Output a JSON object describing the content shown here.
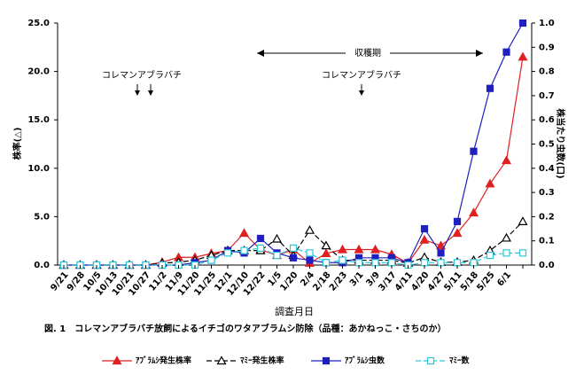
{
  "chart_data": {
    "type": "line",
    "title": "図. 1　コレマンアブラバチ放飼によるイチゴのワタアブラムシ防除（品種：あかねっこ・さちのか）",
    "xlabel": "調査月日",
    "ylabel": "株率(△)",
    "y2label": "株当たり虫数(口)",
    "annotations": [
      "収穫期",
      "コレマンアブラバチ",
      "コレマンアブラバチ"
    ],
    "categories": [
      "9/21",
      "9/28",
      "10/5",
      "10/13",
      "10/21",
      "10/27",
      "11/2",
      "11/9",
      "11/20",
      "11/25",
      "12/1",
      "12/10",
      "12/22",
      "1/5",
      "1/20",
      "2/4",
      "2/18",
      "2/23",
      "3/1",
      "3/9",
      "3/17",
      "4/11",
      "4/20",
      "4/27",
      "5/11",
      "5/18",
      "5/25",
      "6/1",
      null
    ],
    "ylim": [
      0,
      25
    ],
    "yticks": [
      {
        "value": 0,
        "label": "0.0"
      },
      {
        "value": 5,
        "label": "5.0"
      },
      {
        "value": 10,
        "label": "10.0"
      },
      {
        "value": 15,
        "label": "15.0"
      },
      {
        "value": 20,
        "label": "20.0"
      },
      {
        "value": 25,
        "label": "25.0"
      }
    ],
    "y2lim": [
      0,
      1
    ],
    "y2ticks": [
      {
        "value": 0,
        "label": "0.0"
      },
      0.1,
      0.2,
      0.3,
      0.4,
      0.5,
      0.6,
      0.7,
      0.8,
      0.9,
      {
        "value": 1,
        "label": "1.0"
      }
    ],
    "series": [
      {
        "name": "ｱﾌﾞﾗﾑｼ発生株率",
        "color": "#e02020",
        "marker": "triangle",
        "filled": true,
        "dashed": false,
        "values": [
          0,
          0,
          0,
          0,
          0,
          0,
          0.3,
          0.8,
          0.8,
          1.2,
          1.5,
          3.3,
          1.6,
          1.0,
          1.6,
          0.2,
          1.2,
          1.6,
          1.6,
          1.6,
          1.1,
          0.2,
          2.6,
          2.0,
          3.3,
          5.4,
          8.4,
          10.8,
          21.5
        ]
      },
      {
        "name": "ﾏﾐｰ発生株率",
        "color": "#000000",
        "marker": "triangle",
        "filled": false,
        "dashed": true,
        "values": [
          0,
          0,
          0,
          0,
          0,
          0,
          0.2,
          0.3,
          0.5,
          1.0,
          1.5,
          1.5,
          1.5,
          2.7,
          1.0,
          3.6,
          2.0,
          0.5,
          0.5,
          0.5,
          0.5,
          0.2,
          0.8,
          0.3,
          0.3,
          0.5,
          1.5,
          2.8,
          4.5
        ]
      },
      {
        "name": "ｱﾌﾞﾗﾑｼ虫数",
        "color": "#2020c0",
        "marker": "square",
        "filled": true,
        "dashed": false,
        "axis": "y2",
        "values": [
          0,
          0,
          0,
          0,
          0,
          0,
          0,
          0,
          0.01,
          0.02,
          0.06,
          0.05,
          0.11,
          0.05,
          0.03,
          0.02,
          0.01,
          0.01,
          0.03,
          0.03,
          0.03,
          0.01,
          0.15,
          0.05,
          0.18,
          0.47,
          0.73,
          0.88,
          1.0
        ]
      },
      {
        "name": "ﾏﾐｰ数",
        "color": "#30c8d8",
        "marker": "square",
        "filled": false,
        "dashed": true,
        "axis": "y2",
        "values": [
          0,
          0,
          0,
          0,
          0,
          0,
          0,
          0,
          0,
          0.02,
          0.05,
          0.06,
          0.07,
          0.04,
          0.07,
          0.05,
          0.01,
          0.02,
          0.01,
          0.01,
          0.01,
          0,
          0.01,
          0.01,
          0.01,
          0.01,
          0.04,
          0.05,
          0.05
        ]
      }
    ]
  }
}
